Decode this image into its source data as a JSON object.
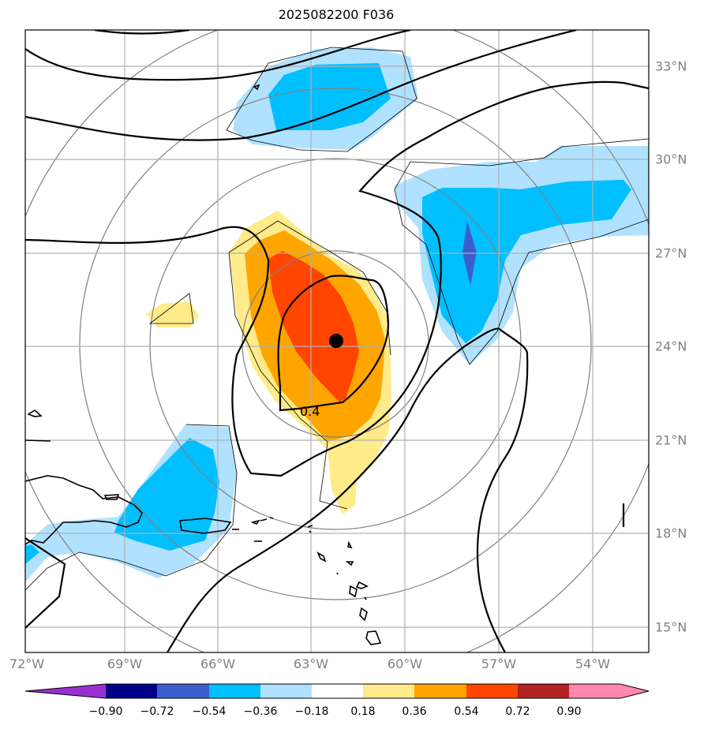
{
  "title": "2025082200 F036",
  "map": {
    "lon_ticks": [
      "72°W",
      "69°W",
      "66°W",
      "63°W",
      "60°W",
      "57°W",
      "54°W"
    ],
    "lat_ticks": [
      "33°N",
      "30°N",
      "27°N",
      "24°N",
      "21°N",
      "18°N",
      "15°N"
    ],
    "contour_label": "0.4",
    "storm_center": {
      "lon": -62.3,
      "lat": 24.2
    }
  },
  "colorbar": {
    "labels": [
      "−0.90",
      "−0.72",
      "−0.54",
      "−0.36",
      "−0.18",
      "0.18",
      "0.36",
      "0.54",
      "0.72",
      "0.90"
    ],
    "colors": [
      "#9b30d0",
      "#00008b",
      "#3a5fcd",
      "#00bfff",
      "#b0e2ff",
      "#ffffff",
      "#ffeb8a",
      "#ffa500",
      "#ff4500",
      "#b22222",
      "#ff88b0"
    ]
  },
  "colors": {
    "light_blue": "#b0e2ff",
    "sky_blue": "#00bfff",
    "royal_blue": "#3a5fcd",
    "light_yellow": "#ffeb8a",
    "orange": "#ffa500",
    "red_orange": "#ff4500"
  }
}
